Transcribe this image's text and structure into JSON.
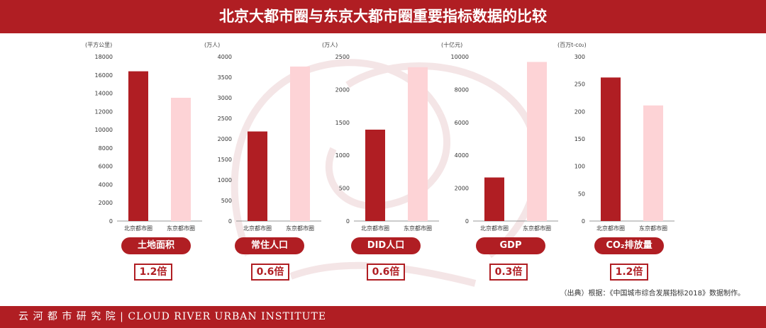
{
  "header": {
    "title": "北京大都市圈与东京大都市圈重要指标数据的比较"
  },
  "colors": {
    "beijing": "#b01e23",
    "tokyo": "#fdd3d6",
    "accent": "#b01e23"
  },
  "chart_data": [
    {
      "type": "bar",
      "unit": "(平方公里)",
      "categories": [
        "北京都市圈",
        "东京都市圈"
      ],
      "values": [
        16400,
        13500
      ],
      "ylim": [
        0,
        18000
      ],
      "yticks": [
        0,
        2000,
        4000,
        6000,
        8000,
        10000,
        12000,
        14000,
        16000,
        18000
      ],
      "label": "土地面积",
      "ratio": "1.2倍"
    },
    {
      "type": "bar",
      "unit": "(万人)",
      "categories": [
        "北京都市圈",
        "东京都市圈"
      ],
      "values": [
        2180,
        3760
      ],
      "ylim": [
        0,
        4000
      ],
      "yticks": [
        0,
        500,
        1000,
        1500,
        2000,
        2500,
        3000,
        3500,
        4000
      ],
      "label": "常住人口",
      "ratio": "0.6倍"
    },
    {
      "type": "bar",
      "unit": "(万人)",
      "categories": [
        "北京都市圈",
        "东京都市圈"
      ],
      "values": [
        1390,
        2340
      ],
      "ylim": [
        0,
        2500
      ],
      "yticks": [
        0,
        500,
        1000,
        1500,
        2000,
        2500
      ],
      "label": "DID人口",
      "ratio": "0.6倍"
    },
    {
      "type": "bar",
      "unit": "(十亿元)",
      "categories": [
        "北京都市圈",
        "东京都市圈"
      ],
      "values": [
        2650,
        9680
      ],
      "ylim": [
        0,
        10000
      ],
      "yticks": [
        0,
        2000,
        4000,
        6000,
        8000,
        10000
      ],
      "label": "GDP",
      "ratio": "0.3倍"
    },
    {
      "type": "bar",
      "unit": "(百万t-co₂)",
      "categories": [
        "北京都市圈",
        "东京都市圈"
      ],
      "values": [
        262,
        211
      ],
      "ylim": [
        0,
        300
      ],
      "yticks": [
        0,
        50,
        100,
        150,
        200,
        250,
        300
      ],
      "label": "CO₂排放量",
      "ratio": "1.2倍"
    }
  ],
  "footnote": "（出典）根据：《中国城市综合发展指标2018》数据制作。",
  "footer": {
    "institute": "云 河 都 市 研 究 院 | CLOUD RIVER URBAN INSTITUTE"
  }
}
